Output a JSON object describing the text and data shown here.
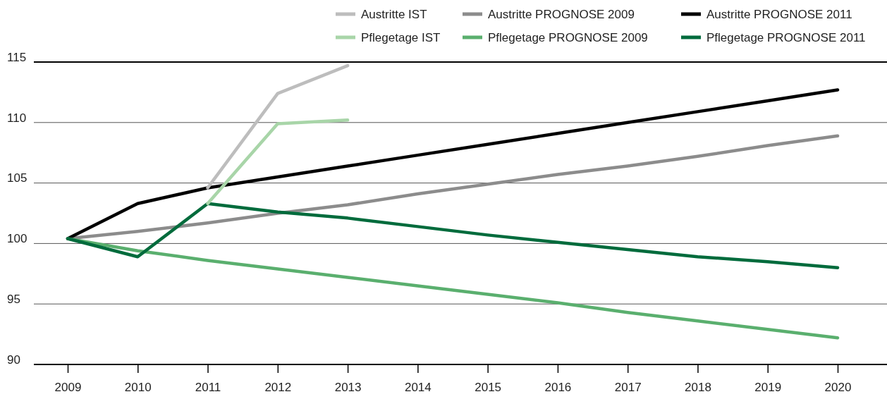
{
  "chart_data": {
    "type": "line",
    "categories": [
      "2009",
      "2010",
      "2011",
      "2012",
      "2013",
      "2014",
      "2015",
      "2016",
      "2017",
      "2018",
      "2019",
      "2020"
    ],
    "ylim": [
      90,
      115
    ],
    "yticks": [
      90,
      95,
      100,
      105,
      110,
      115
    ],
    "grid": "y",
    "legend": "top right",
    "marker": "none",
    "line_style": "solid",
    "series": [
      {
        "name": "Austritte PROGNOSE 2009",
        "color": "#8c8c8c",
        "values": [
          100.4,
          101.0,
          101.7,
          102.5,
          103.2,
          104.1,
          104.9,
          105.7,
          106.4,
          107.2,
          108.1,
          108.9
        ]
      },
      {
        "name": "Austritte PROGNOSE 2011",
        "color": "#000000",
        "values": [
          100.4,
          103.3,
          104.6,
          105.5,
          106.4,
          107.3,
          108.2,
          109.1,
          110.0,
          110.9,
          111.8,
          112.7
        ]
      },
      {
        "name": "Pflegetage PROGNOSE 2009",
        "color": "#5aaf6e",
        "values": [
          100.4,
          99.4,
          98.6,
          97.9,
          97.2,
          96.5,
          95.8,
          95.1,
          94.3,
          93.6,
          92.9,
          92.2
        ]
      },
      {
        "name": "Pflegetage PROGNOSE 2011",
        "color": "#006b3c",
        "values": [
          100.4,
          98.9,
          103.3,
          102.6,
          102.1,
          101.4,
          100.7,
          100.1,
          99.5,
          98.9,
          98.5,
          98.0
        ]
      },
      {
        "name": "Austritte IST",
        "color": "#bdbdbd",
        "values": [
          null,
          null,
          104.6,
          112.4,
          114.7,
          null,
          null,
          null,
          null,
          null,
          null,
          null
        ]
      },
      {
        "name": "Pflegetage IST",
        "color": "#a8d5a8",
        "values": [
          null,
          null,
          103.3,
          109.9,
          110.2,
          null,
          null,
          null,
          null,
          null,
          null,
          null
        ]
      }
    ]
  }
}
